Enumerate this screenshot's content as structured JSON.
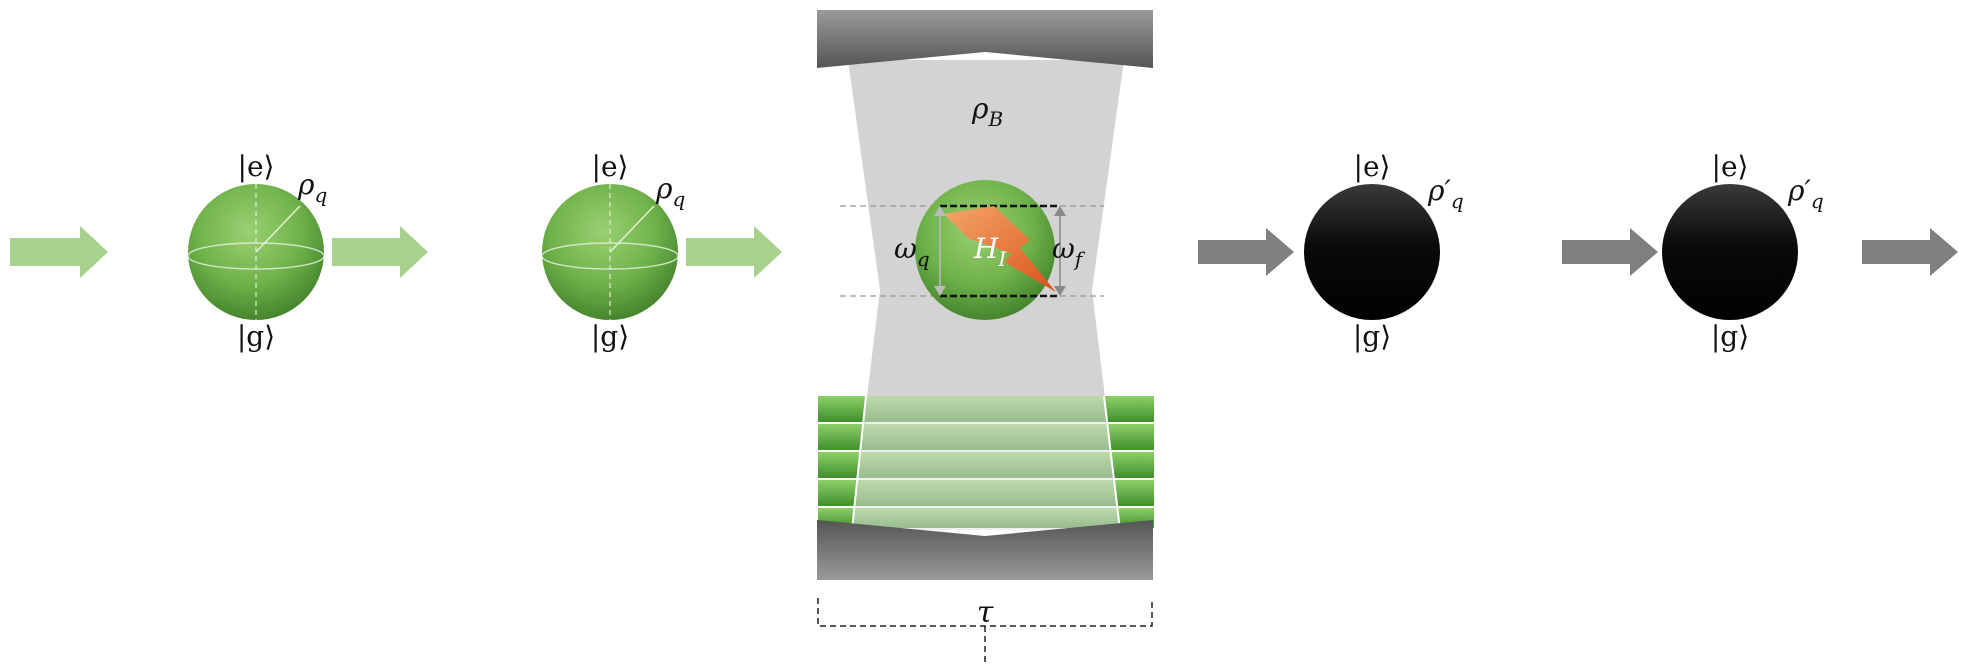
{
  "labels": {
    "ket_e": "|e⟩",
    "ket_g": "|g⟩",
    "rho": "ρ",
    "rho_sub": "q",
    "rho_prime": "ρ′",
    "rho_B": "ρ",
    "rho_B_sub": "B",
    "omega": "ω",
    "omega_q_sub": "q",
    "omega_f_sub": "f",
    "H": "H",
    "H_sub": "I",
    "tau": "τ"
  },
  "colors": {
    "green_light": "#a9d18e",
    "green_sphere": "#6fb24a",
    "green_dark": "#3f7d28",
    "gray_arrow": "#7f7f7f",
    "cavity": "#d3d3d3",
    "mirror": "#7a7a7a",
    "lightning": "#e8702a",
    "black_sphere": "#000000"
  },
  "icons": [
    "arrow-right-icon",
    "bloch-sphere-icon",
    "lightning-icon"
  ]
}
